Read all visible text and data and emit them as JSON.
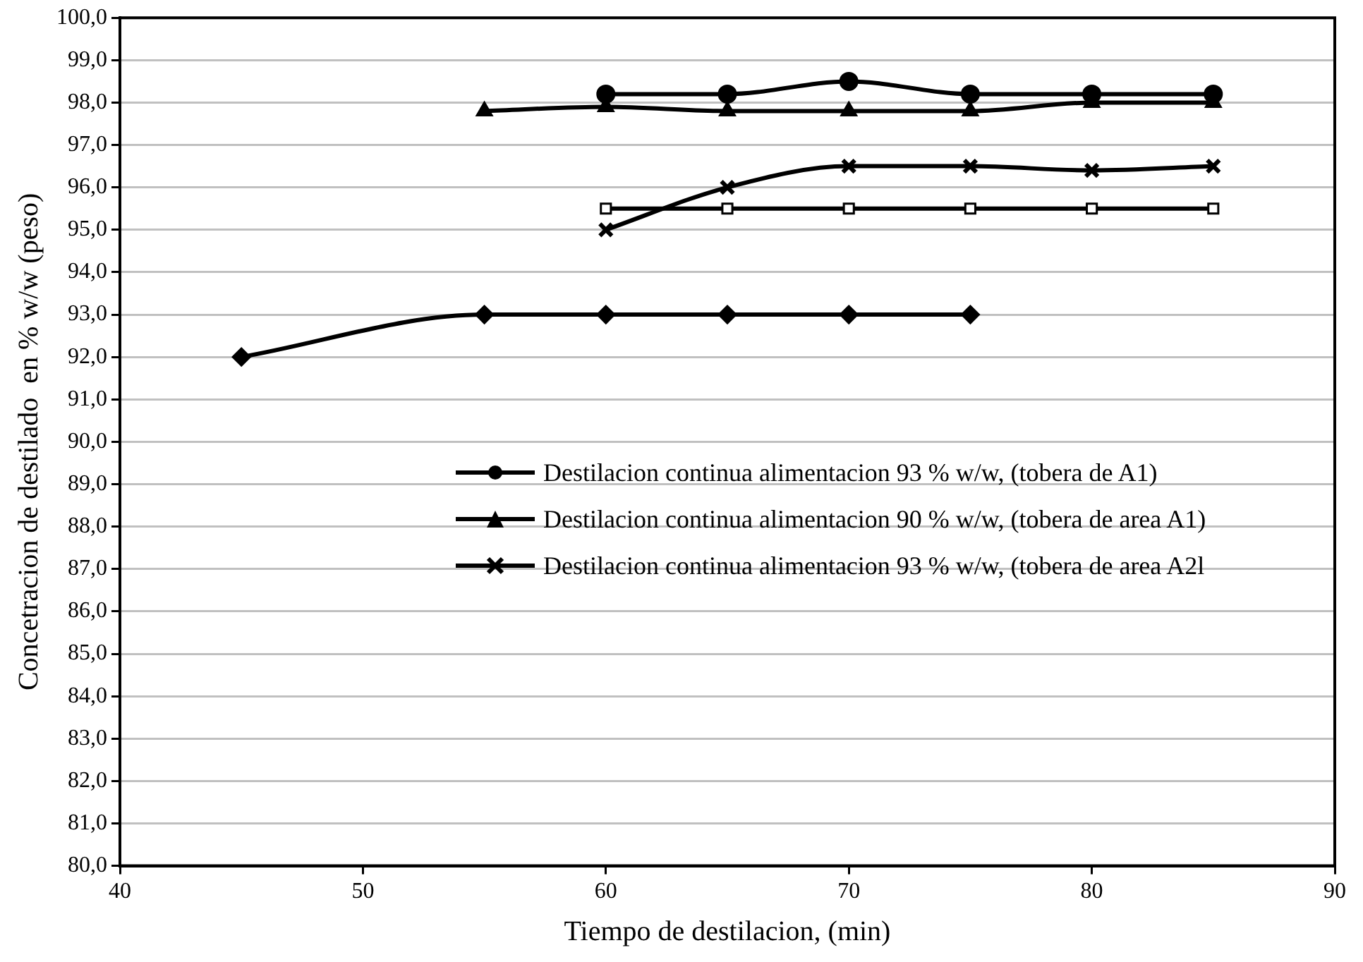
{
  "chart_data": {
    "type": "line",
    "xlabel": "Tiempo de destilacion, (min)",
    "ylabel": "Concetracion de destilado  en % w/w (peso)",
    "xlim": [
      40,
      90
    ],
    "xticks": [
      40,
      50,
      60,
      70,
      80,
      90
    ],
    "ylim": [
      80,
      100
    ],
    "yticks": [
      {
        "value": 80,
        "label": "80,0"
      },
      {
        "value": 81,
        "label": "81,0"
      },
      {
        "value": 82,
        "label": "82,0"
      },
      {
        "value": 83,
        "label": "83,0"
      },
      {
        "value": 84,
        "label": "84,0"
      },
      {
        "value": 85,
        "label": "85,0"
      },
      {
        "value": 86,
        "label": "86,0"
      },
      {
        "value": 87,
        "label": "87,0"
      },
      {
        "value": 88,
        "label": "88,0"
      },
      {
        "value": 89,
        "label": "89,0"
      },
      {
        "value": 90,
        "label": "90,0"
      },
      {
        "value": 91,
        "label": "91,0"
      },
      {
        "value": 92,
        "label": "92,0"
      },
      {
        "value": 93,
        "label": "93,0"
      },
      {
        "value": 94,
        "label": "94,0"
      },
      {
        "value": 95,
        "label": "95,0"
      },
      {
        "value": 96,
        "label": "96,0"
      },
      {
        "value": 97,
        "label": "97,0"
      },
      {
        "value": 98,
        "label": "98,0"
      },
      {
        "value": 99,
        "label": "99,0"
      },
      {
        "value": 100,
        "label": "100,0"
      }
    ],
    "grid": "y",
    "legend": "right",
    "series": [
      {
        "name": "Destilacion continua alimentacion 93 % w/w, (tobera de A1)",
        "color": "#000000",
        "marker": "circle",
        "x": [
          60,
          65,
          70,
          75,
          80,
          85
        ],
        "values": [
          98.2,
          98.2,
          98.5,
          98.2,
          98.2,
          98.2
        ]
      },
      {
        "name": "Destilacion continua alimentacion 90 % w/w, (tobera de area A1)",
        "color": "#000000",
        "marker": "triangle",
        "x": [
          55,
          60,
          65,
          70,
          75,
          80,
          85
        ],
        "values": [
          97.8,
          97.9,
          97.8,
          97.8,
          97.8,
          98.0,
          98.0
        ]
      },
      {
        "name": "Destilacion continua alimentacion 93 % w/w, (tobera de area A2l",
        "color": "#000000",
        "marker": "cross",
        "x": [
          60,
          65,
          70,
          75,
          80,
          85
        ],
        "values": [
          95.0,
          96.0,
          96.5,
          96.5,
          96.4,
          96.5
        ]
      },
      {
        "color": "#000000",
        "marker": "square",
        "x": [
          60,
          65,
          70,
          75,
          80,
          85
        ],
        "values": [
          95.5,
          95.5,
          95.5,
          95.5,
          95.5,
          95.5
        ]
      },
      {
        "color": "#000000",
        "marker": "diamond",
        "x": [
          45,
          55,
          60,
          65,
          70,
          75
        ],
        "values": [
          92,
          93,
          93,
          93,
          93,
          93
        ]
      }
    ]
  }
}
